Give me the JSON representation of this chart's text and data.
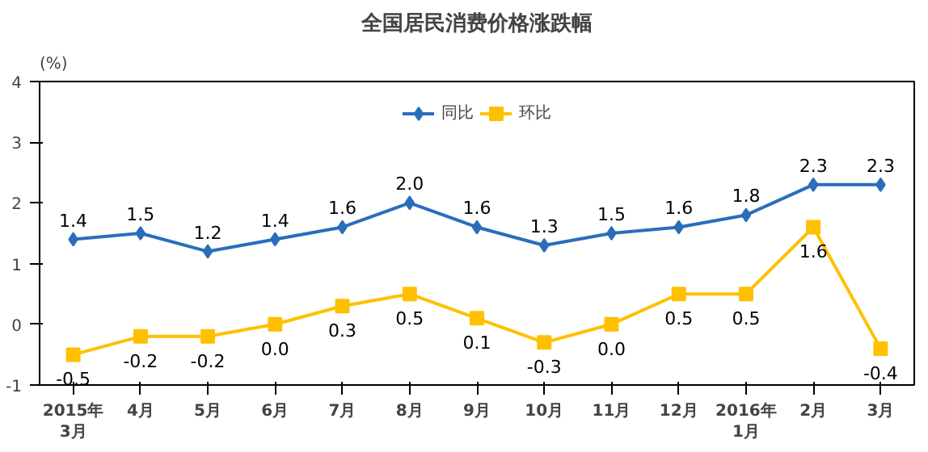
{
  "chart_data": {
    "type": "line",
    "title": "全国居民消费价格涨跌幅",
    "ylabel": "(%)",
    "categories": [
      "2015年\n3月",
      "4月",
      "5月",
      "6月",
      "7月",
      "8月",
      "9月",
      "10月",
      "11月",
      "12月",
      "2016年\n1月",
      "2月",
      "3月"
    ],
    "series": [
      {
        "name": "同比",
        "color": "#2a6ebb",
        "marker": "diamond",
        "values": [
          1.4,
          1.5,
          1.2,
          1.4,
          1.6,
          2.0,
          1.6,
          1.3,
          1.5,
          1.6,
          1.8,
          2.3,
          2.3
        ],
        "value_labels": [
          "1.4",
          "1.5",
          "1.2",
          "1.4",
          "1.6",
          "2.0",
          "1.6",
          "1.3",
          "1.5",
          "1.6",
          "1.8",
          "2.3",
          "2.3"
        ]
      },
      {
        "name": "环比",
        "color": "#ffc000",
        "marker": "square",
        "values": [
          -0.5,
          -0.2,
          -0.2,
          0.0,
          0.3,
          0.5,
          0.1,
          -0.3,
          0.0,
          0.5,
          0.5,
          1.6,
          -0.4
        ],
        "value_labels": [
          "-0.5",
          "-0.2",
          "-0.2",
          "0.0",
          "0.3",
          "0.5",
          "0.1",
          "-0.3",
          "0.0",
          "0.5",
          "0.5",
          "1.6",
          "-0.4"
        ]
      }
    ],
    "ylim": [
      -1,
      4
    ],
    "yticks": [
      -1,
      0,
      1,
      2,
      3,
      4
    ],
    "grid": false,
    "legend": "top"
  }
}
